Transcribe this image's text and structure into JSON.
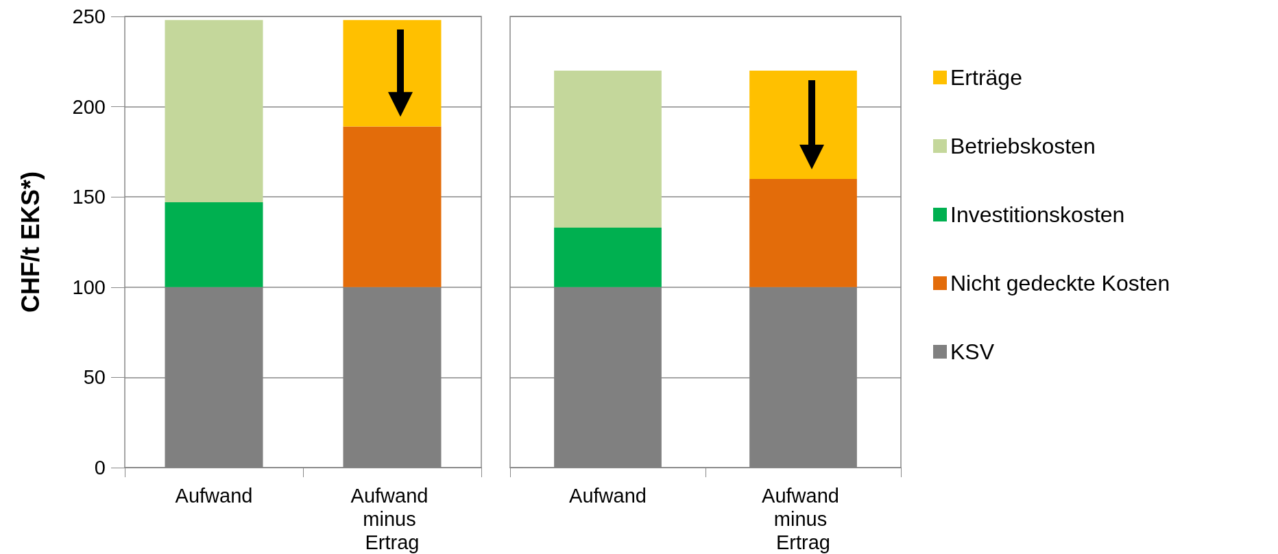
{
  "chart_data": [
    {
      "type": "bar",
      "stacked": true,
      "ylabel": "CHF/t EKS*)",
      "categories": [
        "Aufwand",
        "Aufwand minus Ertrag"
      ],
      "ylim": [
        0,
        250
      ],
      "yticks": [
        0,
        50,
        100,
        150,
        200,
        250
      ],
      "grid": "y",
      "legend": false,
      "series": [
        {
          "color": "#808080",
          "values": [
            100,
            100
          ]
        },
        {
          "color": "#e36c0a",
          "values": [
            null,
            89
          ]
        },
        {
          "color": "#00b050",
          "values": [
            47,
            null
          ]
        },
        {
          "color": "#c4d79b",
          "values": [
            101,
            null
          ]
        },
        {
          "color": "#ffc000",
          "values": [
            null,
            59
          ]
        }
      ]
    },
    {
      "type": "bar",
      "stacked": true,
      "categories": [
        "Aufwand",
        "Aufwand minus Ertrag"
      ],
      "ylim": [
        0,
        250
      ],
      "yticks": [
        0,
        50,
        100,
        150,
        200,
        250
      ],
      "grid": "y",
      "legend": "right",
      "tick_labels": "x",
      "series": [
        {
          "name": "KSV",
          "color": "#808080",
          "values": [
            100,
            100
          ]
        },
        {
          "name": "Nicht gedeckte Kosten",
          "color": "#e36c0a",
          "values": [
            null,
            60
          ]
        },
        {
          "name": "Investitionskosten",
          "color": "#00b050",
          "values": [
            33,
            null
          ]
        },
        {
          "name": "Betriebskosten",
          "color": "#c4d79b",
          "values": [
            87,
            null
          ]
        },
        {
          "name": "Erträge",
          "color": "#ffc000",
          "values": [
            null,
            60
          ]
        }
      ]
    }
  ]
}
